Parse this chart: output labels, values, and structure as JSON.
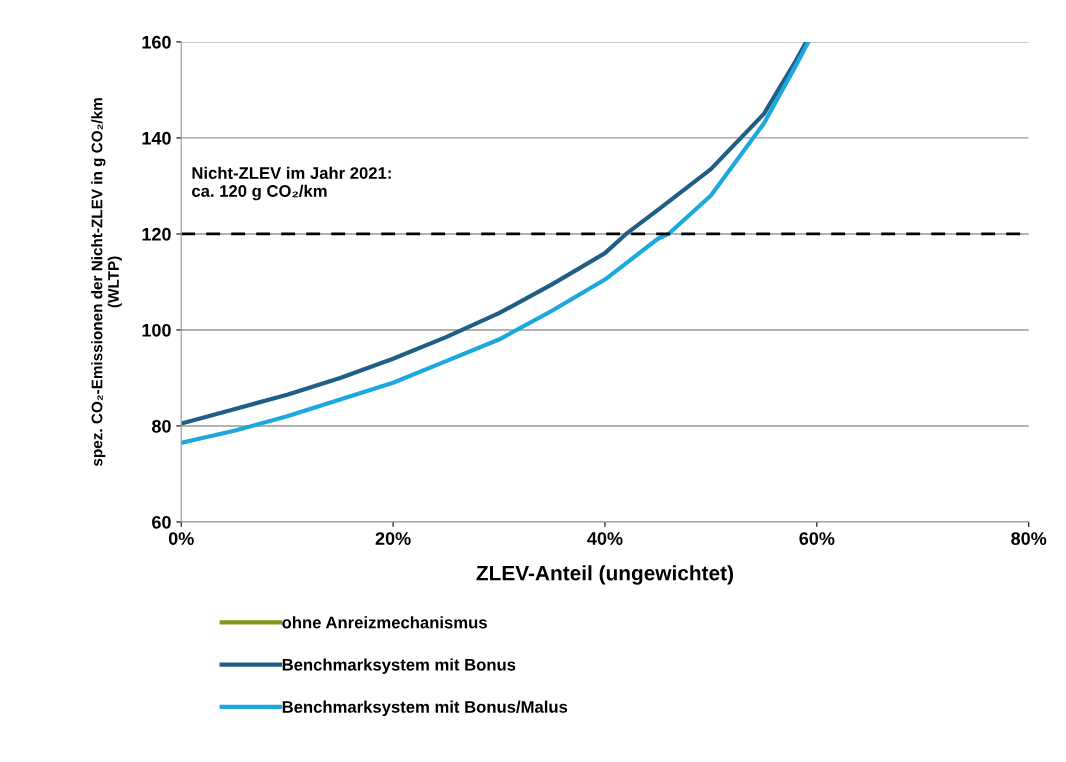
{
  "chart_data": {
    "type": "line",
    "xlabel": "ZLEV-Anteil (ungewichtet)",
    "ylabel": "spez. CO₂-Emissionen der Nicht-ZLEV in g CO₂/km\n(WLTP)",
    "series": [
      {
        "name": "ohne Anreizmechanismus",
        "color": "#7f9a1a"
      },
      {
        "name": "Benchmarksystem mit Bonus",
        "color": "#1f5f85",
        "x": [
          0,
          5,
          10,
          15,
          20,
          25,
          30,
          35,
          40,
          42,
          45,
          50,
          55,
          58,
          59
        ],
        "values": [
          80.5,
          83.5,
          86.5,
          90,
          94,
          98.5,
          103.5,
          109.5,
          116,
          120,
          125,
          133.5,
          145,
          156,
          160
        ]
      },
      {
        "name": "Benchmarksystem mit Bonus/Malus",
        "color": "#1aa8de",
        "x": [
          0,
          5,
          10,
          15,
          20,
          25,
          30,
          35,
          40,
          45,
          46,
          50,
          55,
          58,
          59.2
        ],
        "values": [
          76.5,
          79,
          82,
          85.5,
          89,
          93.5,
          98,
          104,
          110.5,
          119,
          120,
          128,
          143,
          155,
          160
        ]
      }
    ],
    "ref_lines": [
      {
        "axis": "y",
        "value": 120,
        "label": "Nicht-ZLEV im Jahr 2021:\nca. 120 g CO₂/km",
        "color": "#000000",
        "line_style": "dashed"
      }
    ],
    "xlim": [
      0,
      80
    ],
    "xticks": [
      {
        "value": 0,
        "label": "0%"
      },
      {
        "value": 20,
        "label": "20%"
      },
      {
        "value": 40,
        "label": "40%"
      },
      {
        "value": 60,
        "label": "60%"
      },
      {
        "value": 80,
        "label": "80%"
      }
    ],
    "ylim": [
      60,
      160
    ],
    "yticks": [
      60,
      80,
      100,
      120,
      140,
      160
    ],
    "grid": "y",
    "legend": "bottom",
    "marker": "none",
    "line_style": "solid"
  }
}
